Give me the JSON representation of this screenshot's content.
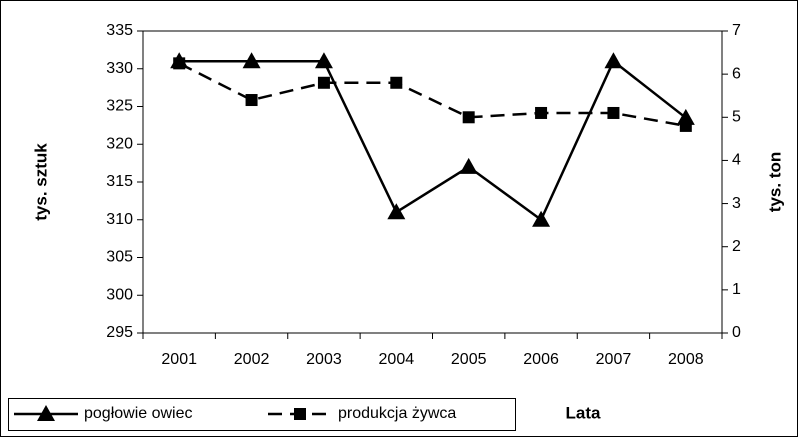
{
  "chart_data": {
    "type": "line",
    "categories": [
      "2001",
      "2002",
      "2003",
      "2004",
      "2005",
      "2006",
      "2007",
      "2008"
    ],
    "x_label": "Lata",
    "y_label": "tys. sztuk",
    "y2_label": "tys. ton",
    "ylim": [
      295,
      335
    ],
    "yticks": [
      295,
      300,
      305,
      310,
      315,
      320,
      325,
      330,
      335
    ],
    "y2lim": [
      0,
      7
    ],
    "y2ticks": [
      0,
      1,
      2,
      3,
      4,
      5,
      6,
      7
    ],
    "legend": "bottom-left",
    "series": [
      {
        "name": "pogłowie owiec",
        "color": "#000000",
        "marker": "triangle",
        "dashed": false,
        "values": [
          331,
          331,
          331,
          311,
          317,
          310,
          331,
          323.5
        ]
      },
      {
        "name": "produkcja żywca",
        "color": "#000000",
        "marker": "square",
        "dashed": true,
        "axis": "y2",
        "values": [
          6.25,
          5.4,
          5.8,
          5.8,
          5.0,
          5.1,
          5.1,
          4.8
        ]
      }
    ]
  }
}
